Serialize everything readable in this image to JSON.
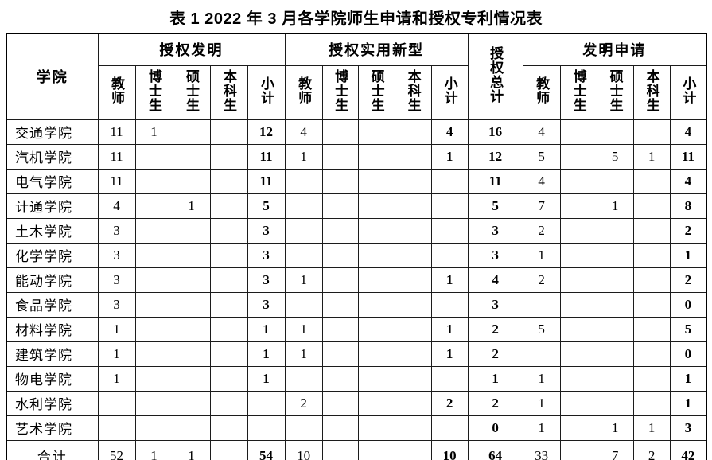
{
  "title": "表 1 2022 年 3 月各学院师生申请和授权专利情况表",
  "table": {
    "college_header": "学院",
    "total_header": "授权总计",
    "groups": [
      {
        "label": "授权发明",
        "cols": [
          "教师",
          "博士生",
          "硕士生",
          "本科生",
          "小计"
        ]
      },
      {
        "label": "授权实用新型",
        "cols": [
          "教师",
          "博士生",
          "硕士生",
          "本科生",
          "小计"
        ]
      },
      {
        "label": "发明申请",
        "cols": [
          "教师",
          "博士生",
          "硕士生",
          "本科生",
          "小计"
        ]
      }
    ],
    "rows": [
      {
        "college": "交通学院",
        "values": [
          "11",
          "1",
          "",
          "",
          "12",
          "4",
          "",
          "",
          "",
          "4",
          "16",
          "4",
          "",
          "",
          "",
          "4"
        ]
      },
      {
        "college": "汽机学院",
        "values": [
          "11",
          "",
          "",
          "",
          "11",
          "1",
          "",
          "",
          "",
          "1",
          "12",
          "5",
          "",
          "5",
          "1",
          "11"
        ]
      },
      {
        "college": "电气学院",
        "values": [
          "11",
          "",
          "",
          "",
          "11",
          "",
          "",
          "",
          "",
          "",
          "11",
          "4",
          "",
          "",
          "",
          "4"
        ]
      },
      {
        "college": "计通学院",
        "values": [
          "4",
          "",
          "1",
          "",
          "5",
          "",
          "",
          "",
          "",
          "",
          "5",
          "7",
          "",
          "1",
          "",
          "8"
        ]
      },
      {
        "college": "土木学院",
        "values": [
          "3",
          "",
          "",
          "",
          "3",
          "",
          "",
          "",
          "",
          "",
          "3",
          "2",
          "",
          "",
          "",
          "2"
        ]
      },
      {
        "college": "化学学院",
        "values": [
          "3",
          "",
          "",
          "",
          "3",
          "",
          "",
          "",
          "",
          "",
          "3",
          "1",
          "",
          "",
          "",
          "1"
        ]
      },
      {
        "college": "能动学院",
        "values": [
          "3",
          "",
          "",
          "",
          "3",
          "1",
          "",
          "",
          "",
          "1",
          "4",
          "2",
          "",
          "",
          "",
          "2"
        ]
      },
      {
        "college": "食品学院",
        "values": [
          "3",
          "",
          "",
          "",
          "3",
          "",
          "",
          "",
          "",
          "",
          "3",
          "",
          "",
          "",
          "",
          "0"
        ]
      },
      {
        "college": "材料学院",
        "values": [
          "1",
          "",
          "",
          "",
          "1",
          "1",
          "",
          "",
          "",
          "1",
          "2",
          "5",
          "",
          "",
          "",
          "5"
        ]
      },
      {
        "college": "建筑学院",
        "values": [
          "1",
          "",
          "",
          "",
          "1",
          "1",
          "",
          "",
          "",
          "1",
          "2",
          "",
          "",
          "",
          "",
          "0"
        ]
      },
      {
        "college": "物电学院",
        "values": [
          "1",
          "",
          "",
          "",
          "1",
          "",
          "",
          "",
          "",
          "",
          "1",
          "1",
          "",
          "",
          "",
          "1"
        ]
      },
      {
        "college": "水利学院",
        "values": [
          "",
          "",
          "",
          "",
          "",
          "2",
          "",
          "",
          "",
          "2",
          "2",
          "1",
          "",
          "",
          "",
          "1"
        ]
      },
      {
        "college": "艺术学院",
        "values": [
          "",
          "",
          "",
          "",
          "",
          "",
          "",
          "",
          "",
          "",
          "0",
          "1",
          "",
          "1",
          "1",
          "3"
        ]
      }
    ],
    "total_row": {
      "college": "合计",
      "values": [
        "52",
        "1",
        "1",
        "",
        "54",
        "10",
        "",
        "",
        "",
        "10",
        "64",
        "33",
        "",
        "7",
        "2",
        "42"
      ]
    }
  }
}
